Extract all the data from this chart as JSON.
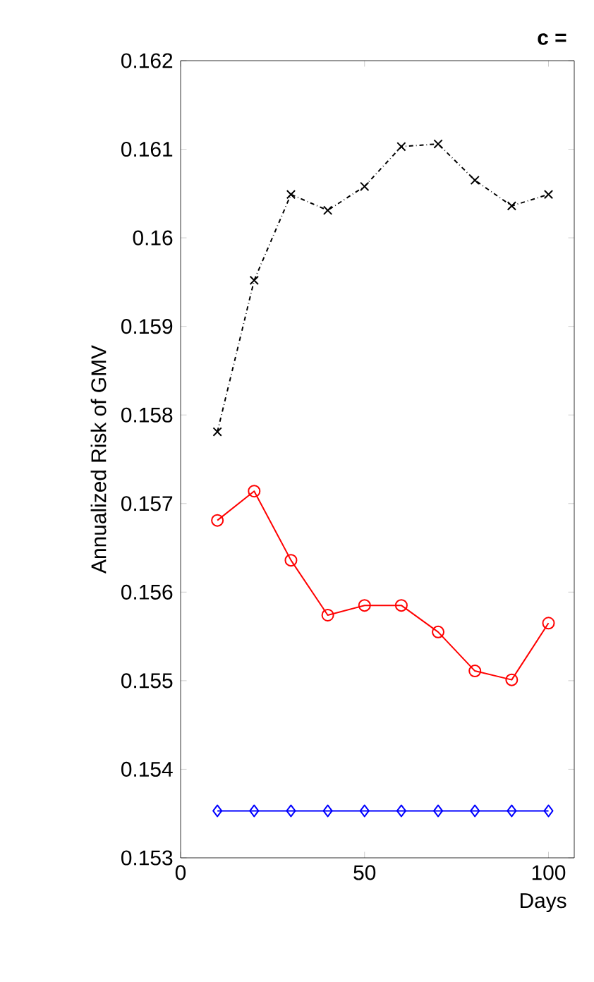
{
  "chart_data": {
    "type": "line",
    "title": "c =",
    "xlabel": "Days",
    "ylabel": "Annualized Risk of GMV",
    "x": [
      10,
      20,
      30,
      40,
      50,
      60,
      70,
      80,
      90,
      100
    ],
    "series": [
      {
        "color": "#000000",
        "marker": "cross",
        "line_style": "dashdot",
        "values": [
          0.15781,
          0.15952,
          0.16049,
          0.16031,
          0.16058,
          0.16103,
          0.16106,
          0.16065,
          0.16036,
          0.16049
        ]
      },
      {
        "color": "#ff0000",
        "marker": "circle",
        "line_style": "solid",
        "values": [
          0.15681,
          0.15714,
          0.15636,
          0.15574,
          0.15585,
          0.15585,
          0.15555,
          0.15511,
          0.15501,
          0.15565
        ]
      },
      {
        "color": "#0000ff",
        "marker": "diamond",
        "line_style": "solid",
        "values": [
          0.15353,
          0.15353,
          0.15353,
          0.15353,
          0.15353,
          0.15353,
          0.15353,
          0.15353,
          0.15353,
          0.15353
        ]
      }
    ],
    "xlim": [
      0,
      107
    ],
    "xticks": [
      0,
      50,
      100
    ],
    "ylim": [
      0.153,
      0.162
    ],
    "yticks": [
      0.153,
      0.154,
      0.155,
      0.156,
      0.157,
      0.158,
      0.159,
      0.16,
      0.161,
      0.162
    ],
    "grid": false
  }
}
